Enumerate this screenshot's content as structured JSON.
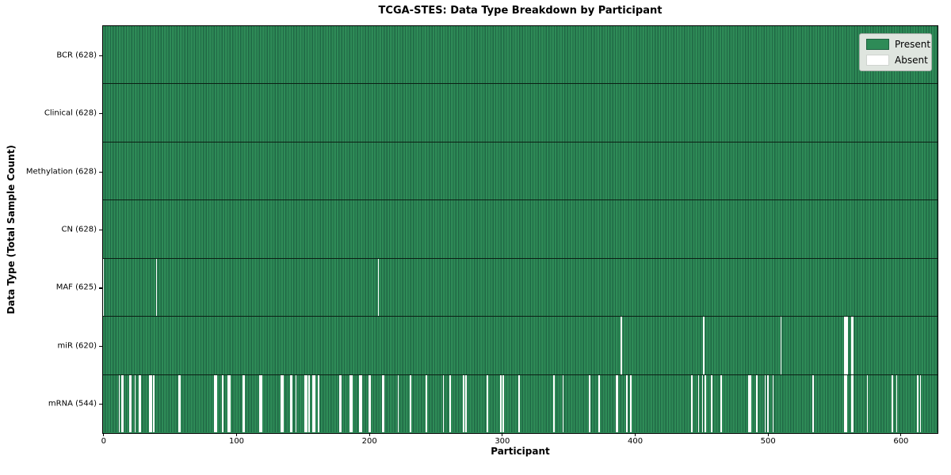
{
  "colors": {
    "present": "#2e8b57",
    "present_edge": "#206845",
    "absent": "#ffffff",
    "legend_bg": "#dfe5df",
    "frame": "#000000"
  },
  "chart_data": {
    "type": "heatmap",
    "title": "TCGA-STES: Data Type Breakdown by Participant",
    "xlabel": "Participant",
    "ylabel": "Data Type (Total Sample Count)",
    "legend": [
      "Present",
      "Absent"
    ],
    "legend_position": "upper right",
    "x_ticks": [
      0,
      100,
      200,
      300,
      400,
      500,
      600
    ],
    "xlim": [
      -0.5,
      627.5
    ],
    "n_participants": 628,
    "grid": false,
    "rows": [
      {
        "label": "BCR (628)",
        "data_type": "BCR",
        "present_count": 628,
        "absent_participants": []
      },
      {
        "label": "Clinical (628)",
        "data_type": "Clinical",
        "present_count": 628,
        "absent_participants": []
      },
      {
        "label": "Methylation (628)",
        "data_type": "Methylation",
        "present_count": 628,
        "absent_participants": []
      },
      {
        "label": "CN (628)",
        "data_type": "CN",
        "present_count": 628,
        "absent_participants": []
      },
      {
        "label": "MAF (625)",
        "data_type": "MAF",
        "present_count": 625,
        "absent_participants": [
          0,
          40,
          207
        ]
      },
      {
        "label": "miR (620)",
        "data_type": "miR",
        "present_count": 620,
        "absent_participants": [
          390,
          452,
          510,
          558,
          559,
          560,
          563,
          564
        ]
      },
      {
        "label": "mRNA (544)",
        "data_type": "mRNA",
        "present_count": 544,
        "absent_participants": [
          12,
          14,
          15,
          20,
          21,
          24,
          27,
          28,
          35,
          36,
          38,
          57,
          58,
          84,
          85,
          90,
          94,
          95,
          105,
          106,
          118,
          119,
          134,
          135,
          141,
          142,
          145,
          152,
          153,
          155,
          158,
          159,
          162,
          178,
          179,
          186,
          187,
          193,
          194,
          200,
          201,
          210,
          211,
          222,
          231,
          243,
          256,
          261,
          271,
          273,
          289,
          299,
          301,
          313,
          339,
          346,
          366,
          373,
          386,
          387,
          394,
          397,
          443,
          448,
          451,
          453,
          458,
          465,
          486,
          487,
          492,
          498,
          500,
          504,
          534,
          558,
          559,
          563,
          564,
          575,
          594,
          597,
          613,
          615
        ]
      }
    ]
  }
}
